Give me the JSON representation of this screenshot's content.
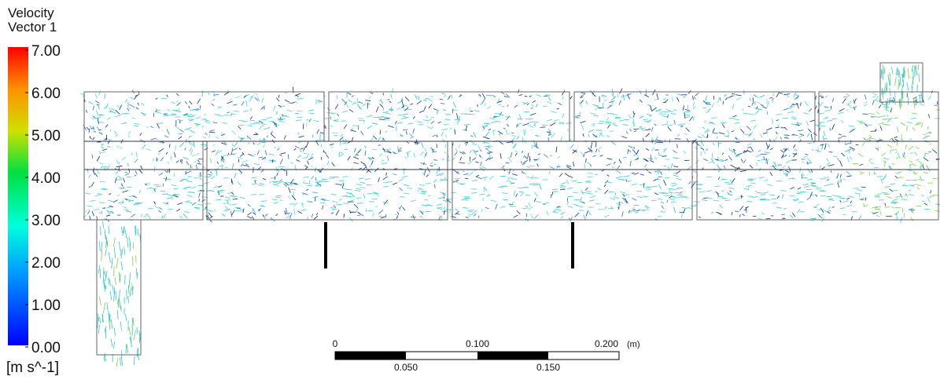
{
  "legend": {
    "title": [
      "Velocity",
      "Vector 1"
    ],
    "ticks": [
      "7.00",
      "6.00",
      "5.00",
      "4.00",
      "3.00",
      "2.00",
      "1.00",
      "0.00"
    ],
    "units": "[m s^-1]"
  },
  "scale_bar": {
    "top_labels": [
      "0",
      "0.100",
      "0.200"
    ],
    "unit": "(m)",
    "bottom_labels": [
      "0.050",
      "0.150"
    ]
  }
}
